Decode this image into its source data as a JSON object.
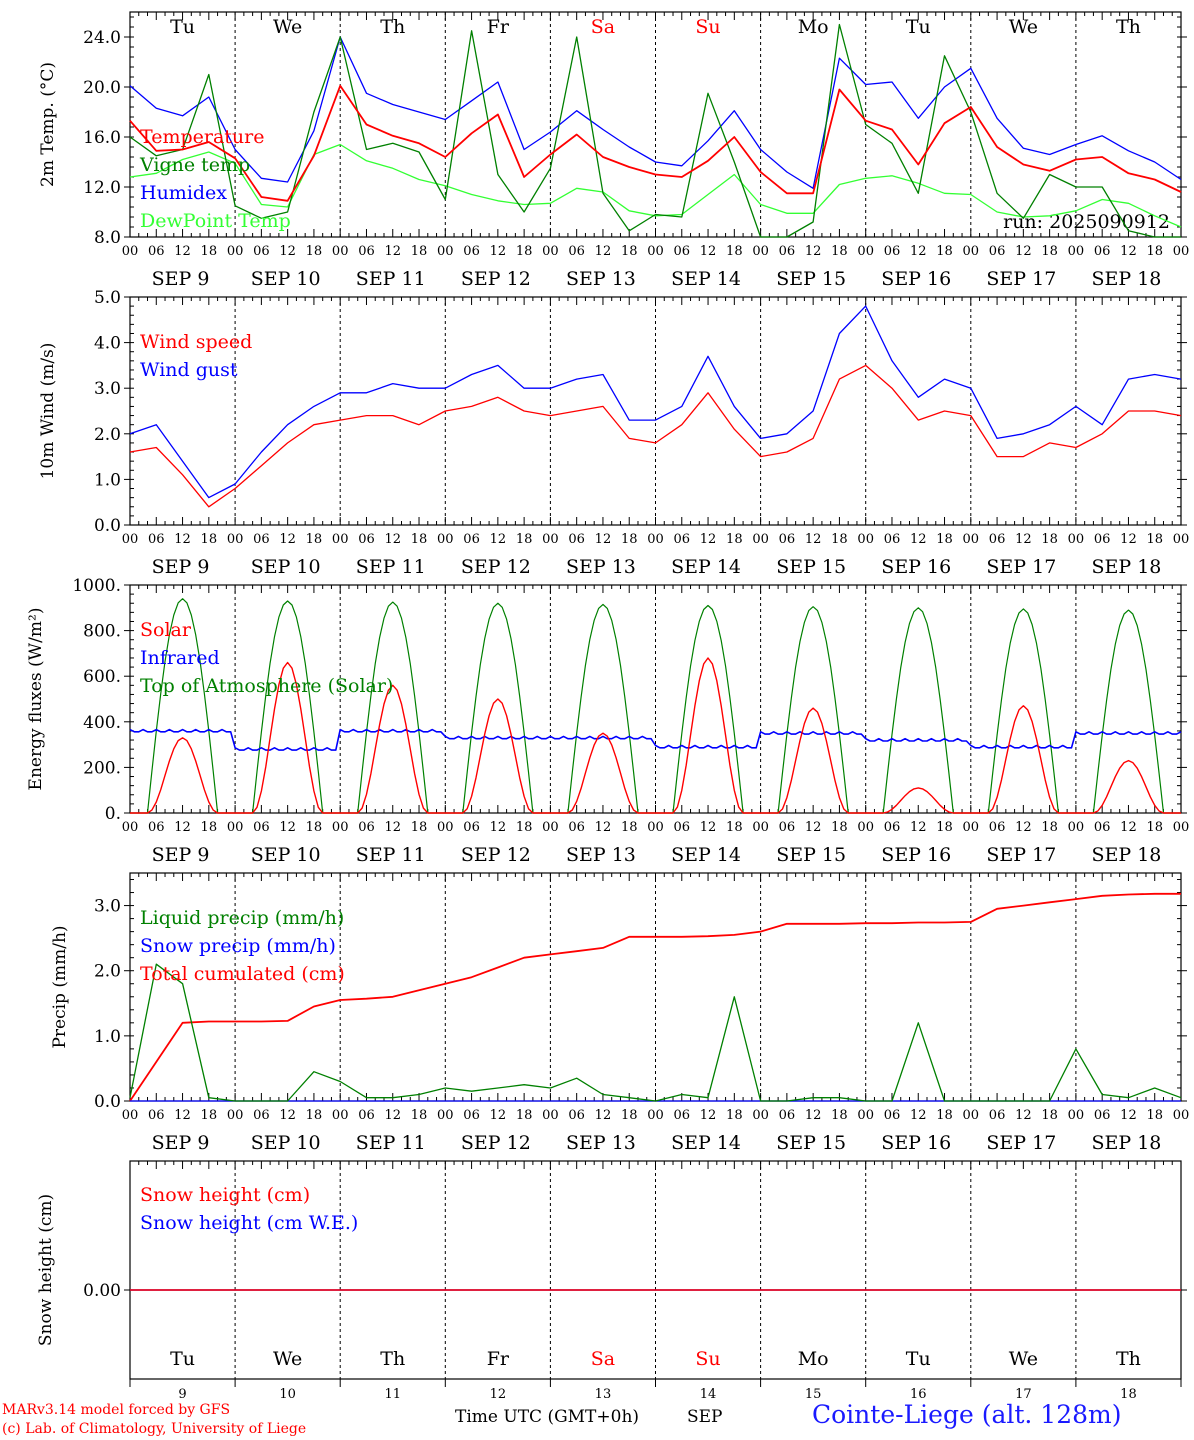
{
  "chart_data": [
    {
      "type": "line",
      "panel": "temperature",
      "ylabel": "2m Temp. (°C)",
      "ylim": [
        8,
        26
      ],
      "yticks": [
        8,
        12,
        16,
        20,
        24
      ],
      "ytick_labels": [
        "8.0",
        "12.0",
        "16.0",
        "20.0",
        "24.0"
      ],
      "weekday_labels": [
        "Tu",
        "We",
        "Th",
        "Fr",
        "Sa",
        "Su",
        "Mo",
        "Tu",
        "We",
        "Th"
      ],
      "weekend_days": [
        4,
        5
      ],
      "annotation": "run: 2025090912",
      "x_hours": [
        0,
        6,
        12,
        18,
        24,
        30,
        36,
        42,
        48,
        54,
        60,
        66,
        72,
        78,
        84,
        90,
        96,
        102,
        108,
        114,
        120,
        126,
        132,
        138,
        144,
        150,
        156,
        162,
        168,
        174,
        180,
        186,
        192,
        198,
        204,
        210,
        216,
        222,
        228,
        234,
        240
      ],
      "series": [
        {
          "name": "Temperature",
          "color": "#ff0000",
          "values": [
            17.3,
            14.9,
            15.0,
            15.6,
            14.3,
            11.2,
            10.9,
            14.5,
            20.1,
            17.0,
            16.1,
            15.5,
            14.4,
            16.3,
            17.8,
            12.8,
            14.6,
            16.2,
            14.4,
            13.6,
            13.0,
            12.8,
            14.1,
            16.0,
            13.2,
            11.5,
            11.5,
            19.8,
            17.3,
            16.6,
            13.8,
            17.1,
            18.4,
            15.2,
            13.8,
            13.3,
            14.2,
            14.4,
            13.1,
            12.6,
            11.6
          ]
        },
        {
          "name": "Vigne temp",
          "color": "#008000",
          "values": [
            16.0,
            14.5,
            15.0,
            21.0,
            10.5,
            9.5,
            10.0,
            18.0,
            24.0,
            15.0,
            15.5,
            14.8,
            11.0,
            24.5,
            13.0,
            10.0,
            13.5,
            24.0,
            11.5,
            8.5,
            9.8,
            9.6,
            19.5,
            14.0,
            7.5,
            8.0,
            9.2,
            25.0,
            17.0,
            15.5,
            11.5,
            22.5,
            18.0,
            11.5,
            9.5,
            13.0,
            12.0,
            12.0,
            8.5,
            7.5,
            7.0
          ]
        },
        {
          "name": "Humidex",
          "color": "#0000ff",
          "values": [
            20.1,
            18.3,
            17.7,
            19.2,
            15.0,
            12.7,
            12.4,
            16.5,
            24.0,
            19.5,
            18.6,
            18.0,
            17.4,
            18.9,
            20.4,
            15.0,
            16.4,
            18.1,
            16.6,
            15.2,
            14.0,
            13.7,
            15.7,
            18.1,
            15.0,
            13.2,
            11.9,
            22.3,
            20.2,
            20.4,
            17.5,
            20.0,
            21.5,
            17.5,
            15.1,
            14.6,
            15.4,
            16.1,
            14.9,
            14.0,
            12.6
          ]
        },
        {
          "name": "DewPoint Temp",
          "color": "#33ff33",
          "values": [
            12.8,
            13.1,
            14.2,
            14.8,
            13.9,
            10.6,
            10.4,
            14.6,
            15.4,
            14.1,
            13.5,
            12.6,
            12.1,
            11.4,
            10.9,
            10.6,
            10.7,
            11.9,
            11.6,
            10.1,
            9.7,
            9.8,
            11.4,
            13.0,
            10.6,
            9.9,
            9.9,
            12.2,
            12.7,
            12.9,
            12.3,
            11.5,
            11.4,
            10.0,
            9.6,
            9.7,
            10.1,
            11.0,
            10.7,
            9.7,
            8.8
          ]
        }
      ]
    },
    {
      "type": "line",
      "panel": "wind",
      "ylabel": "10m Wind (m/s)",
      "ylim": [
        0,
        5
      ],
      "yticks": [
        0,
        1,
        2,
        3,
        4,
        5
      ],
      "ytick_labels": [
        "0.0",
        "1.0",
        "2.0",
        "3.0",
        "4.0",
        "5.0"
      ],
      "x_hours": [
        0,
        6,
        12,
        18,
        24,
        30,
        36,
        42,
        48,
        54,
        60,
        66,
        72,
        78,
        84,
        90,
        96,
        102,
        108,
        114,
        120,
        126,
        132,
        138,
        144,
        150,
        156,
        162,
        168,
        174,
        180,
        186,
        192,
        198,
        204,
        210,
        216,
        222,
        228,
        234,
        240
      ],
      "series": [
        {
          "name": "Wind speed",
          "color": "#ff0000",
          "values": [
            1.6,
            1.7,
            1.1,
            0.4,
            0.8,
            1.3,
            1.8,
            2.2,
            2.3,
            2.4,
            2.4,
            2.2,
            2.5,
            2.6,
            2.8,
            2.5,
            2.4,
            2.5,
            2.6,
            1.9,
            1.8,
            2.2,
            2.9,
            2.1,
            1.5,
            1.6,
            1.9,
            3.2,
            3.5,
            3.0,
            2.3,
            2.5,
            2.4,
            1.5,
            1.5,
            1.8,
            1.7,
            2.0,
            2.5,
            2.5,
            2.4
          ]
        },
        {
          "name": "Wind gust",
          "color": "#0000ff",
          "values": [
            2.0,
            2.2,
            1.4,
            0.6,
            0.9,
            1.6,
            2.2,
            2.6,
            2.9,
            2.9,
            3.1,
            3.0,
            3.0,
            3.3,
            3.5,
            3.0,
            3.0,
            3.2,
            3.3,
            2.3,
            2.3,
            2.6,
            3.7,
            2.6,
            1.9,
            2.0,
            2.5,
            4.2,
            4.8,
            3.6,
            2.8,
            3.2,
            3.0,
            1.9,
            2.0,
            2.2,
            2.6,
            2.2,
            3.2,
            3.3,
            3.2
          ]
        }
      ]
    },
    {
      "type": "line",
      "panel": "energy",
      "ylabel": "Energy fluxes (W/m²)",
      "ylim": [
        0,
        1000
      ],
      "yticks": [
        0,
        200,
        400,
        600,
        800,
        1000
      ],
      "ytick_labels": [
        "0.",
        "200.",
        "400.",
        "600.",
        "800.",
        "1000."
      ],
      "peak_hour_of_day": 12,
      "series": [
        {
          "name": "Solar",
          "color": "#ff0000",
          "daily_peak": [
            330,
            660,
            560,
            500,
            350,
            680,
            460,
            110,
            470,
            230
          ]
        },
        {
          "name": "Infrared",
          "color": "#0000ff",
          "daily_value": [
            360,
            280,
            360,
            330,
            330,
            290,
            350,
            320,
            290,
            350
          ]
        },
        {
          "name": "Top of Atmosphere (Solar)",
          "color": "#008000",
          "daily_peak": [
            940,
            930,
            925,
            920,
            915,
            910,
            905,
            900,
            895,
            890
          ]
        }
      ]
    },
    {
      "type": "line",
      "panel": "precip",
      "ylabel": "Precip (mm/h)",
      "ylim": [
        0,
        3.5
      ],
      "yticks": [
        0,
        1,
        2,
        3
      ],
      "ytick_labels": [
        "0.0",
        "1.0",
        "2.0",
        "3.0"
      ],
      "x_hours": [
        0,
        6,
        12,
        18,
        24,
        30,
        36,
        42,
        48,
        54,
        60,
        66,
        72,
        78,
        84,
        90,
        96,
        102,
        108,
        114,
        120,
        126,
        132,
        138,
        144,
        150,
        156,
        162,
        168,
        174,
        180,
        186,
        192,
        198,
        204,
        210,
        216,
        222,
        228,
        234,
        240
      ],
      "series": [
        {
          "name": "Liquid precip (mm/h)",
          "color": "#008000",
          "values": [
            0.05,
            2.1,
            1.8,
            0.05,
            0.0,
            0.0,
            0.0,
            0.45,
            0.3,
            0.05,
            0.05,
            0.1,
            0.2,
            0.15,
            0.2,
            0.25,
            0.2,
            0.35,
            0.1,
            0.05,
            0.0,
            0.1,
            0.05,
            1.6,
            0.0,
            0.0,
            0.05,
            0.05,
            0.0,
            0.0,
            1.2,
            0.0,
            0.0,
            0.0,
            0.0,
            0.0,
            0.8,
            0.1,
            0.05,
            0.2,
            0.05
          ]
        },
        {
          "name": "Snow precip (mm/h)",
          "color": "#0000ff",
          "values": [
            0,
            0,
            0,
            0,
            0,
            0,
            0,
            0,
            0,
            0,
            0,
            0,
            0,
            0,
            0,
            0,
            0,
            0,
            0,
            0,
            0,
            0,
            0,
            0,
            0,
            0,
            0,
            0,
            0,
            0,
            0,
            0,
            0,
            0,
            0,
            0,
            0,
            0,
            0,
            0,
            0
          ]
        },
        {
          "name": "Total cumulated (cm)",
          "color": "#ff0000",
          "values": [
            0.0,
            0.6,
            1.2,
            1.22,
            1.22,
            1.22,
            1.23,
            1.45,
            1.55,
            1.57,
            1.6,
            1.7,
            1.8,
            1.9,
            2.05,
            2.2,
            2.25,
            2.3,
            2.35,
            2.52,
            2.52,
            2.52,
            2.53,
            2.55,
            2.6,
            2.72,
            2.72,
            2.72,
            2.73,
            2.73,
            2.74,
            2.74,
            2.75,
            2.95,
            3.0,
            3.05,
            3.1,
            3.15,
            3.17,
            3.18,
            3.18
          ]
        }
      ]
    },
    {
      "type": "line",
      "panel": "snow",
      "ylabel": "Snow height (cm)",
      "yticks": [
        0
      ],
      "ytick_labels": [
        "0.00"
      ],
      "series": [
        {
          "name": "Snow height (cm)",
          "color": "#ff0000",
          "values": [
            0,
            0
          ]
        },
        {
          "name": "Snow height (cm W.E.)",
          "color": "#0000ff",
          "values": [
            0,
            0
          ]
        }
      ]
    }
  ],
  "hour_ticks": [
    "00",
    "06",
    "12",
    "18"
  ],
  "date_labels": [
    "SEP  9",
    "SEP 10",
    "SEP 11",
    "SEP 12",
    "SEP 13",
    "SEP 14",
    "SEP 15",
    "SEP 16",
    "SEP 17",
    "SEP 18"
  ],
  "final_hour_tick": "00",
  "day_numbers": [
    "9",
    "10",
    "11",
    "12",
    "13",
    "14",
    "15",
    "16",
    "17",
    "18"
  ],
  "xlabel": "Time UTC (GMT+0h)",
  "month_label": "SEP",
  "footer": {
    "model_line": "MARv3.14 model forced by GFS",
    "copyright_line": "(c) Lab. of Climatology, University of Liege",
    "station": "Cointe-Liege (alt. 128m)"
  }
}
